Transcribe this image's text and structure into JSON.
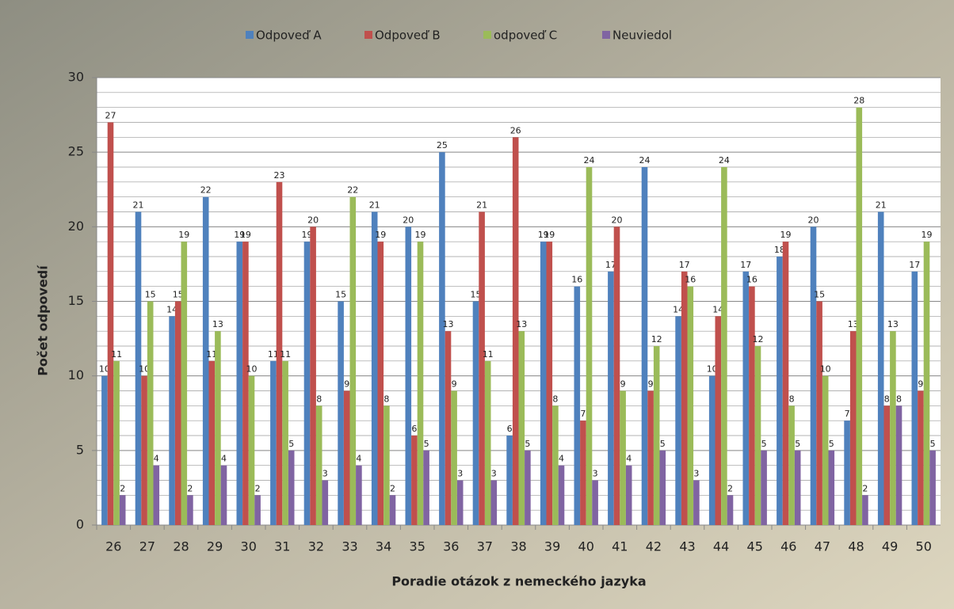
{
  "chart_data": {
    "type": "bar",
    "xlabel": "Poradie otázok  z  nemeckého jazyka",
    "ylabel": "Počet odpovedí",
    "categories": [
      "26",
      "27",
      "28",
      "29",
      "30",
      "31",
      "32",
      "33",
      "34",
      "35",
      "36",
      "37",
      "38",
      "39",
      "40",
      "41",
      "42",
      "43",
      "44",
      "45",
      "46",
      "47",
      "48",
      "49",
      "50"
    ],
    "series": [
      {
        "name": "Odpoveď A",
        "color": "#4f81bd",
        "values": [
          10,
          21,
          14,
          22,
          19,
          11,
          19,
          15,
          21,
          20,
          25,
          15,
          6,
          19,
          16,
          17,
          24,
          14,
          10,
          17,
          18,
          20,
          7,
          21,
          17
        ]
      },
      {
        "name": "Odpoveď B",
        "color": "#c0504d",
        "values": [
          27,
          10,
          15,
          11,
          19,
          23,
          20,
          9,
          19,
          6,
          13,
          21,
          26,
          19,
          7,
          20,
          9,
          17,
          14,
          16,
          19,
          15,
          13,
          8,
          9
        ]
      },
      {
        "name": "odpoveď C",
        "color": "#9bbb59",
        "values": [
          11,
          15,
          19,
          13,
          10,
          11,
          8,
          22,
          8,
          19,
          9,
          11,
          13,
          8,
          24,
          9,
          12,
          16,
          24,
          12,
          8,
          10,
          28,
          13,
          19
        ]
      },
      {
        "name": "Neuviedol",
        "color": "#8064a2",
        "values": [
          2,
          4,
          2,
          4,
          2,
          5,
          3,
          4,
          2,
          5,
          3,
          3,
          5,
          4,
          3,
          4,
          5,
          3,
          2,
          5,
          5,
          5,
          2,
          8,
          5
        ]
      }
    ],
    "ylim": [
      0,
      30
    ],
    "yticks": [
      0,
      5,
      10,
      15,
      20,
      25,
      30
    ],
    "grid": true,
    "minor_grid": true,
    "legend": "top"
  }
}
